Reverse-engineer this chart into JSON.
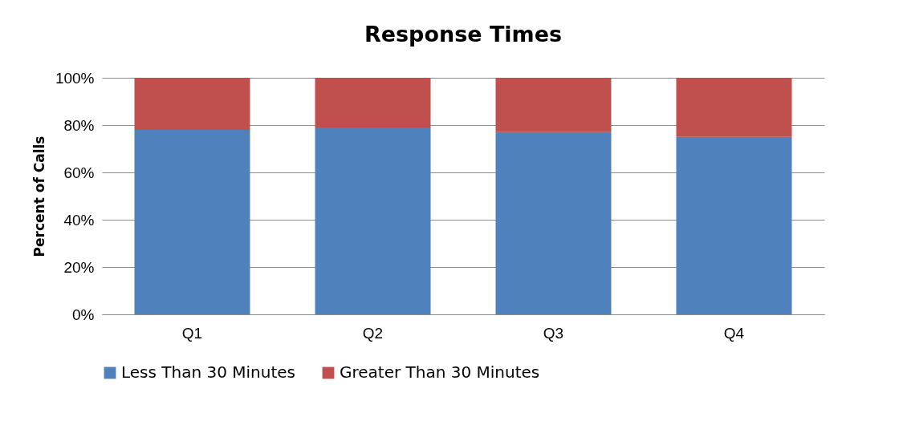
{
  "chart_data": {
    "type": "bar",
    "title": "Response Times",
    "ylabel": "Percent of Calls",
    "categories": [
      "Q1",
      "Q2",
      "Q3",
      "Q4"
    ],
    "stacked": true,
    "series": [
      {
        "name": "Less Than 30 Minutes",
        "color": "#4f81bd",
        "values": [
          78,
          79,
          77,
          75
        ]
      },
      {
        "name": "Greater Than 30 Minutes",
        "color": "#c0504d",
        "values": [
          22,
          21,
          23,
          25
        ]
      }
    ],
    "ylim": [
      0,
      100
    ],
    "yticks": [
      {
        "value": 0,
        "label": "0%"
      },
      {
        "value": 20,
        "label": "20%"
      },
      {
        "value": 40,
        "label": "40%"
      },
      {
        "value": 60,
        "label": "60%"
      },
      {
        "value": 80,
        "label": "80%"
      },
      {
        "value": 100,
        "label": "100%"
      }
    ],
    "grid": "y",
    "legend": "bottom"
  }
}
